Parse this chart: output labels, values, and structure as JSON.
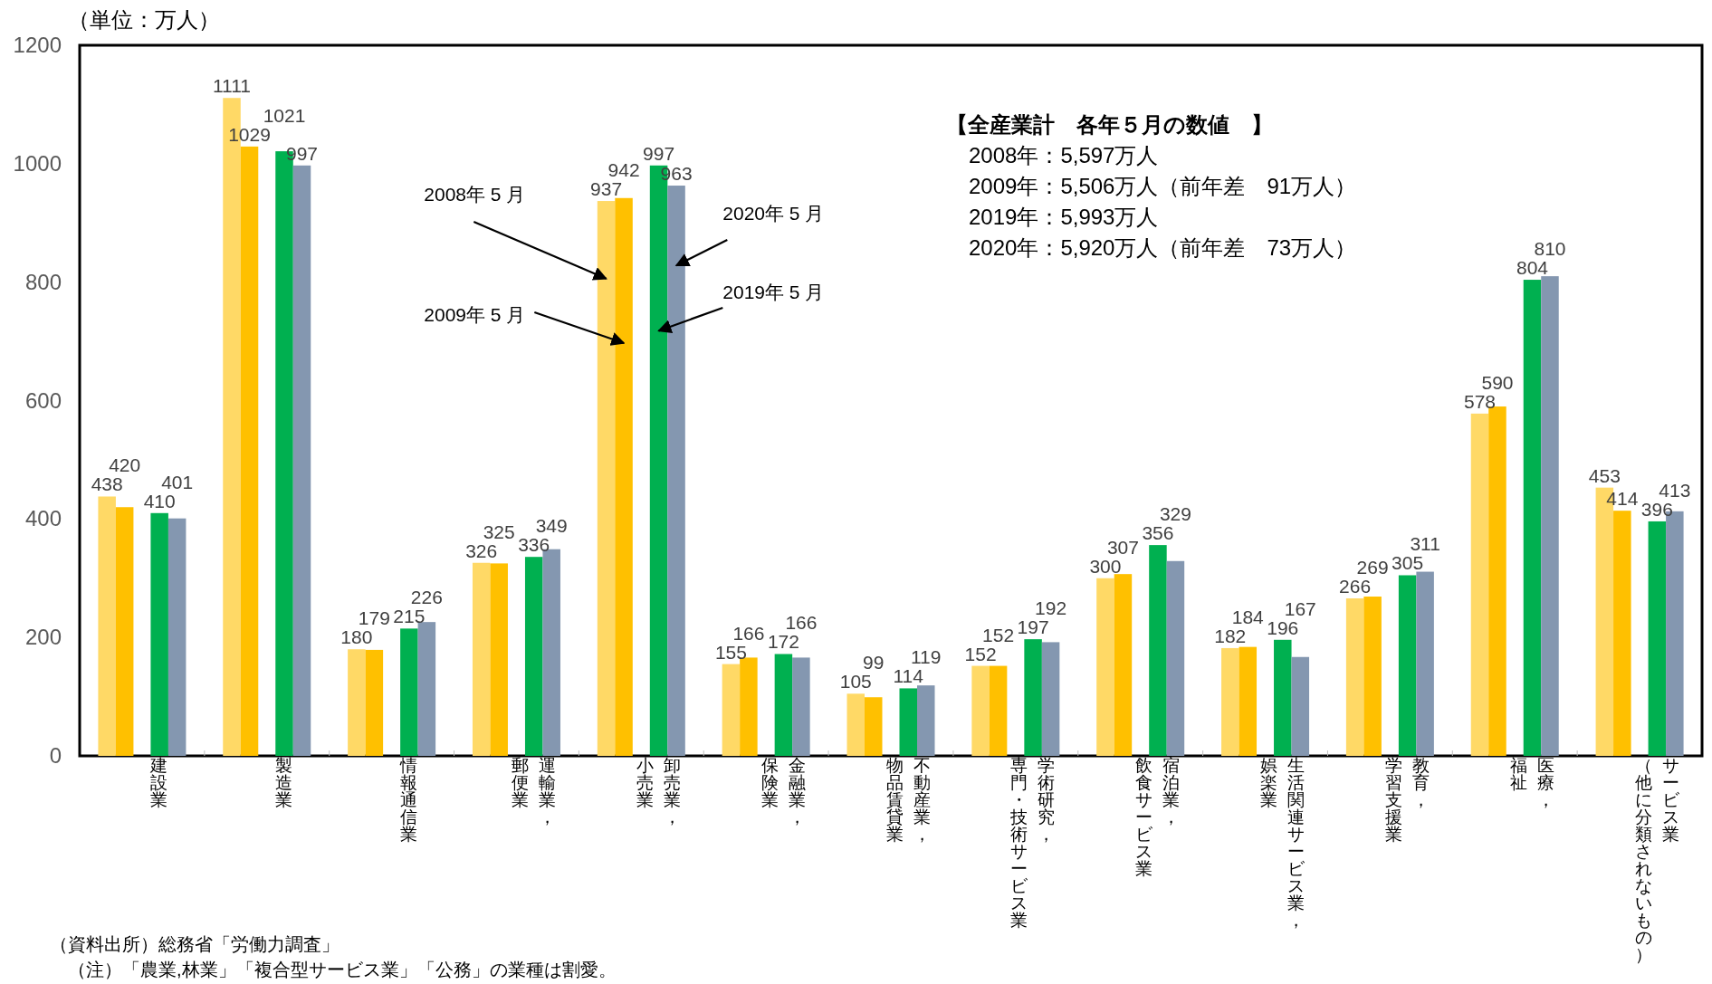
{
  "chart_data": {
    "type": "bar",
    "ylabel": "（単位：万人）",
    "categories": [
      "建設業",
      "製造業",
      "情報通信業",
      "運輸業，郵便業",
      "卸売業，小売業",
      "金融業，保険業",
      "不動産業，物品賃貸業",
      "学術研究，専門・技術サービス業",
      "宿泊業，飲食サービス業",
      "生活関連サービス業，娯楽業",
      "教育，学習支援業",
      "医療，福祉",
      "サービス業（他に分類されないもの）"
    ],
    "series": [
      {
        "name": "2008年 5 月",
        "color": "#ffd966",
        "values": [
          438,
          1111,
          180,
          326,
          937,
          155,
          105,
          152,
          300,
          182,
          266,
          578,
          453
        ]
      },
      {
        "name": "2009年 5 月",
        "color": "#ffc000",
        "values": [
          420,
          1029,
          179,
          325,
          942,
          166,
          99,
          152,
          307,
          184,
          269,
          590,
          414
        ]
      },
      {
        "name": "2019年 5 月",
        "color": "#00b050",
        "values": [
          410,
          1021,
          215,
          336,
          997,
          172,
          114,
          197,
          356,
          196,
          305,
          804,
          396
        ]
      },
      {
        "name": "2020年 5 月",
        "color": "#8497b0",
        "values": [
          401,
          997,
          226,
          349,
          963,
          166,
          119,
          192,
          329,
          167,
          311,
          810,
          413
        ]
      }
    ],
    "ylim": [
      0,
      1200
    ],
    "yticks": [
      0,
      200,
      400,
      600,
      800,
      1000,
      1200
    ],
    "data_labels": true,
    "grid": false,
    "legend": false,
    "annotations": [
      "【全産業計　各年５月の数値　】",
      "2008年：5,597万人",
      "2009年：5,506万人（前年差　91万人）",
      "2019年：5,993万人",
      "2020年：5,920万人（前年差　73万人）",
      "（資料出所）総務省「労働力調査」",
      "（注）「農業,林業」「複合型サービス業」「公務」の業種は割愛。"
    ]
  }
}
